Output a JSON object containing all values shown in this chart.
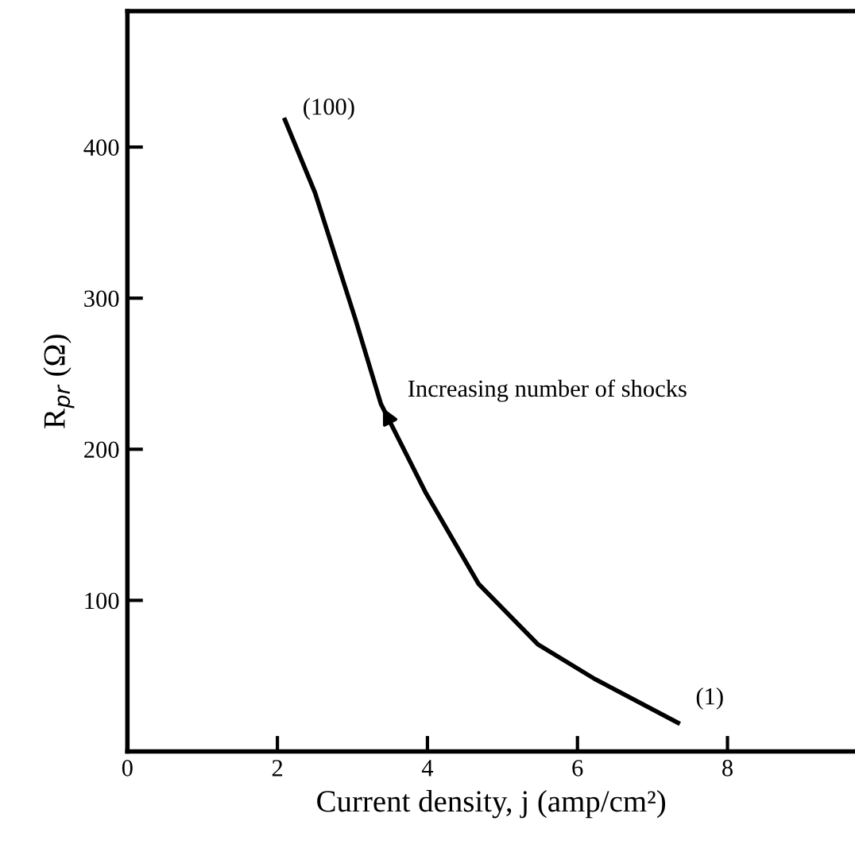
{
  "chart_data": {
    "type": "line",
    "xlabel": "Current density, j (amp/cm²)",
    "ylabel": "R$_{pr}$ (Ω)",
    "x": [
      2.1,
      2.5,
      3.04,
      3.38,
      3.98,
      4.68,
      5.47,
      6.23,
      7.34
    ],
    "series": [
      {
        "color": "#000000",
        "values": [
          418,
          370,
          286,
          230,
          171,
          111,
          71,
          48,
          19
        ]
      }
    ],
    "xlim": [
      0,
      9.7
    ],
    "ylim": [
      0,
      490
    ],
    "xticks": [
      0,
      2,
      4,
      6,
      8
    ],
    "yticks": [
      100,
      200,
      300,
      400
    ],
    "grid": false,
    "legend": false,
    "marker": "none",
    "line_style": "solid",
    "annotations": [
      {
        "text": "(100)",
        "x": 2.1,
        "y": 418
      },
      {
        "text": "(1)",
        "x": 7.34,
        "y": 19
      },
      {
        "text": "Increasing number of shocks",
        "x": 3.38,
        "y": 230
      }
    ]
  }
}
